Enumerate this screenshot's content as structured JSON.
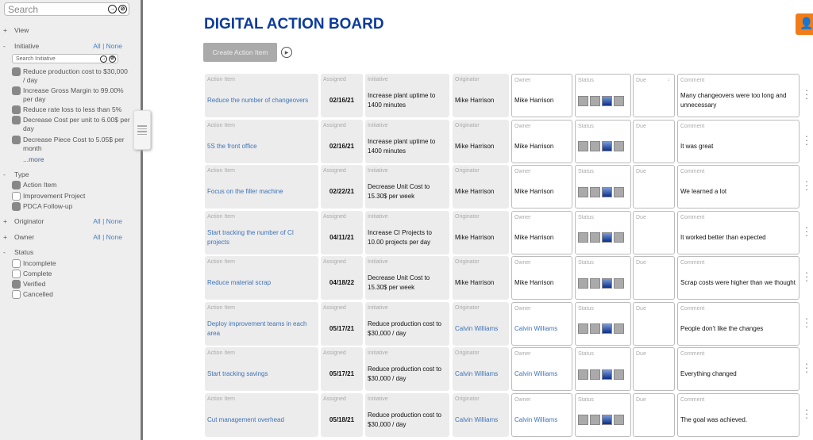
{
  "sidebar": {
    "search_placeholder": "Search",
    "view": {
      "toggle": "+",
      "label": "View"
    },
    "initiative": {
      "toggle": "-",
      "label": "Initiative",
      "all": "All",
      "sep": "|",
      "none": "None",
      "search_placeholder": "Search Initiative",
      "items": [
        {
          "label": "Reduce production cost to $30,000 / day",
          "checked": true
        },
        {
          "label": "Increase Gross Margin to 99.00% per day",
          "checked": true
        },
        {
          "label": "Reduce rate loss to less than 5%",
          "checked": true
        },
        {
          "label": "Decrease Cost per unit to 6.00$ per day",
          "checked": true
        },
        {
          "label": "Decrease Piece Cost to 5.05$ per month",
          "checked": true
        }
      ],
      "more": "...more"
    },
    "type": {
      "toggle": "-",
      "label": "Type",
      "items": [
        {
          "label": "Action Item",
          "checked": true
        },
        {
          "label": "Improvement Project",
          "checked": false
        },
        {
          "label": "PDCA Follow-up",
          "checked": true
        }
      ]
    },
    "originator": {
      "toggle": "+",
      "label": "Originator",
      "all": "All",
      "sep": "|",
      "none": "None"
    },
    "owner": {
      "toggle": "+",
      "label": "Owner",
      "all": "All",
      "sep": "|",
      "none": "None"
    },
    "status": {
      "toggle": "-",
      "label": "Status",
      "items": [
        {
          "label": "Incomplete",
          "checked": false
        },
        {
          "label": "Complete",
          "checked": false
        },
        {
          "label": "Verified",
          "checked": true
        },
        {
          "label": "Cancelled",
          "checked": false
        }
      ]
    }
  },
  "header": {
    "title": "DIGITAL ACTION BOARD",
    "create_label": "Create Action Item"
  },
  "columns": {
    "action": "Action Item",
    "assigned": "Assigned",
    "initiative": "Initiative",
    "originator": "Originator",
    "owner": "Owner",
    "status": "Status",
    "due": "Due",
    "comment": "Comment"
  },
  "colors": {
    "title": "#0b3b9c",
    "link": "#3e73b8",
    "accent": "#f07d1a",
    "status_active": "#0b2f8a"
  },
  "rows": [
    {
      "action": "Reduce the number of changeovers",
      "assigned": "02/16/21",
      "initiative": "Increase plant uptime to 1400 minutes",
      "originator": "Mike Harrison",
      "owner": "Mike Harrison",
      "status_step": 3,
      "due": "",
      "comment": "Many changeovers were too long and unnecessary"
    },
    {
      "action": "5S the front office",
      "assigned": "02/16/21",
      "initiative": "Increase plant uptime to 1400 minutes",
      "originator": "Mike Harrison",
      "owner": "Mike Harrison",
      "status_step": 3,
      "due": "",
      "comment": "It was great"
    },
    {
      "action": "Focus on the filler machine",
      "assigned": "02/22/21",
      "initiative": "Decrease Unit Cost to 15.30$ per week",
      "originator": "Mike Harrison",
      "owner": "Mike Harrison",
      "status_step": 3,
      "due": "",
      "comment": "We learned a lot"
    },
    {
      "action": "Start tracking the number of CI projects",
      "assigned": "04/11/21",
      "initiative": "Increase CI Projects to 10.00 projects per day",
      "originator": "Mike Harrison",
      "owner": "Mike Harrison",
      "status_step": 3,
      "due": "",
      "comment": "It worked better than expected"
    },
    {
      "action": "Reduce material scrap",
      "assigned": "04/18/22",
      "initiative": "Decrease Unit Cost to 15.30$ per week",
      "originator": "Mike Harrison",
      "owner": "Mike Harrison",
      "status_step": 3,
      "due": "",
      "comment": "Scrap costs were higher than we thought"
    },
    {
      "action": "Deploy improvement teams in each area",
      "assigned": "05/17/21",
      "initiative": "Reduce production cost to $30,000 / day",
      "originator": "Calvin Williams",
      "owner": "Calvin Williams",
      "status_step": 3,
      "due": "",
      "comment": "People don't like the changes"
    },
    {
      "action": "Start tracking savings",
      "assigned": "05/17/21",
      "initiative": "Reduce production cost to $30,000 / day",
      "originator": "Calvin Williams",
      "owner": "Calvin Williams",
      "status_step": 3,
      "due": "",
      "comment": "Everything changed"
    },
    {
      "action": "Cut management overhead",
      "assigned": "05/18/21",
      "initiative": "Reduce production cost to $30,000 / day",
      "originator": "Calvin Williams",
      "owner": "Calvin Williams",
      "status_step": 3,
      "due": "",
      "comment": "The goal was achieved."
    }
  ]
}
